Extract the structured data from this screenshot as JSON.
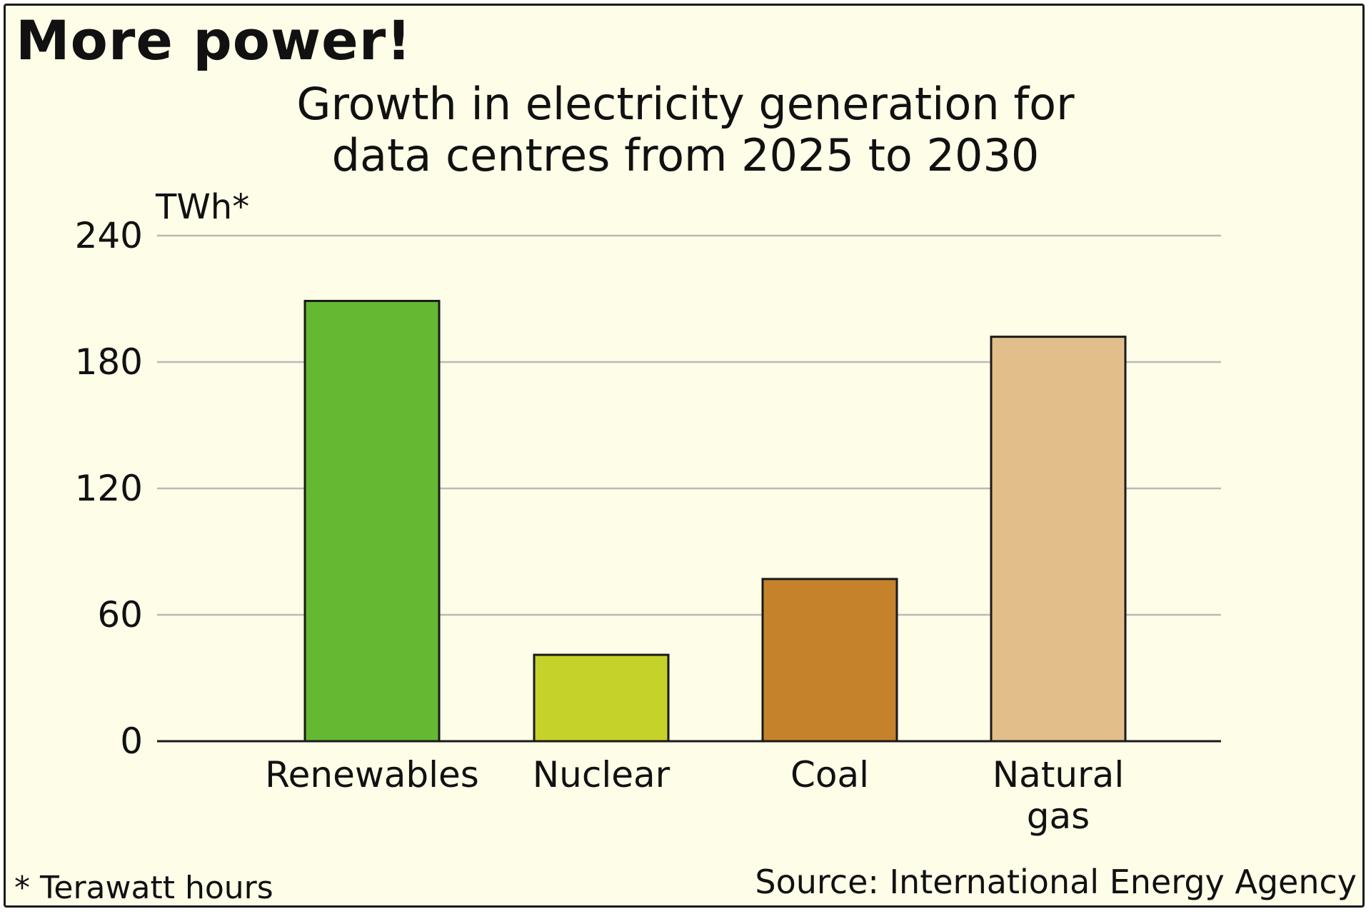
{
  "header": {
    "title": "More power!",
    "subtitle_line1": "Growth in electricity generation for",
    "subtitle_line2": "data centres from 2025 to 2030"
  },
  "footer": {
    "footnote": "* Terawatt hours",
    "source": "Source: International Energy Agency"
  },
  "chart_data": {
    "type": "bar",
    "title": "More power!",
    "subtitle": "Growth in electricity generation for data centres from 2025 to 2030",
    "ylabel": "TWh*",
    "xlabel": "",
    "categories": [
      "Renewables",
      "Nuclear",
      "Coal",
      "Natural gas"
    ],
    "category_lines": [
      [
        "Renewables"
      ],
      [
        "Nuclear"
      ],
      [
        "Coal"
      ],
      [
        "Natural",
        "gas"
      ]
    ],
    "values": [
      209,
      41,
      77,
      192
    ],
    "colors": [
      "#65b832",
      "#c5d229",
      "#c5822a",
      "#e2be8a"
    ],
    "ylim": [
      0,
      240
    ],
    "yticks": [
      0,
      60,
      120,
      180,
      240
    ],
    "ytick_labels": [
      "0",
      "60",
      "120",
      "180",
      "240"
    ],
    "grid": true,
    "legend": "none"
  }
}
